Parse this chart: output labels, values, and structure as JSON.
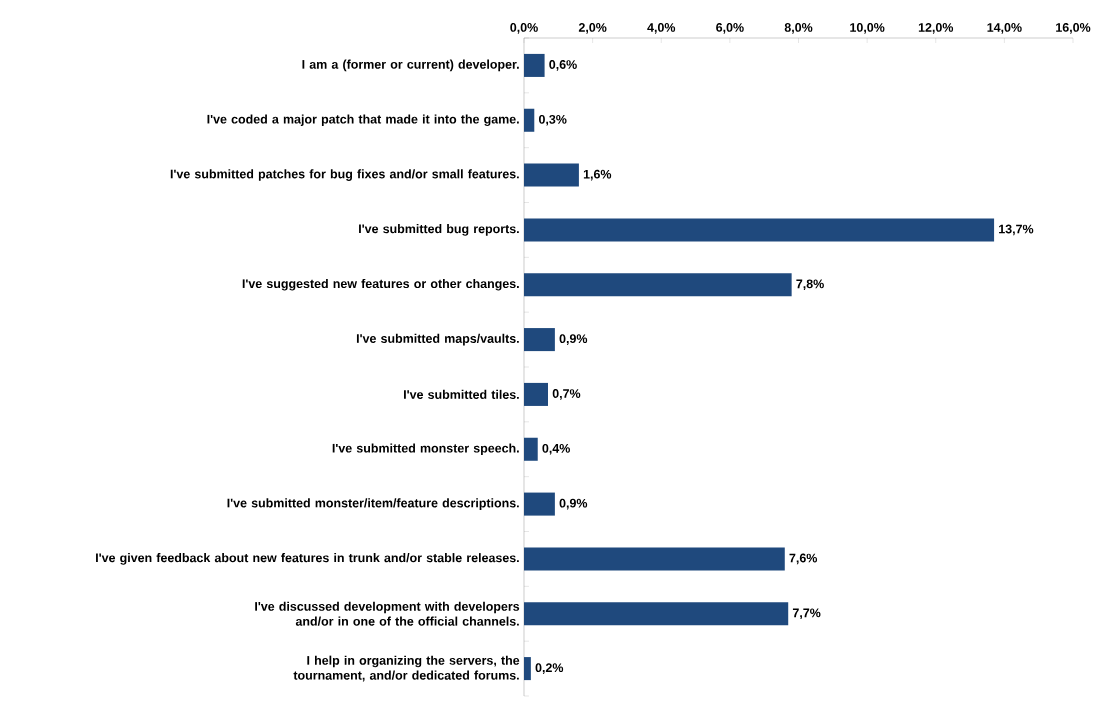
{
  "chart_data": {
    "type": "bar",
    "orientation": "horizontal",
    "color": "#1f497d",
    "categories": [
      "I am a (former or current) developer.",
      "I've coded a major patch that made it into the game.",
      "I've submitted patches for bug fixes and/or small features.",
      "I've submitted bug reports.",
      "I've suggested new features or other changes.",
      "I've submitted maps/vaults.",
      "I've submitted tiles.",
      "I've submitted monster speech.",
      "I've submitted monster/item/feature descriptions.",
      "I've given feedback about new features in trunk and/or stable releases.",
      "I've discussed development with developers and/or in one of the official channels.",
      "I help in organizing the servers, the tournament, and/or dedicated forums."
    ],
    "values": [
      0.6,
      0.3,
      1.6,
      13.7,
      7.8,
      0.9,
      0.7,
      0.4,
      0.9,
      7.6,
      7.7,
      0.2
    ],
    "value_labels": [
      "0,6%",
      "0,3%",
      "1,6%",
      "13,7%",
      "7,8%",
      "0,9%",
      "0,7%",
      "0,4%",
      "0,9%",
      "7,6%",
      "7,7%",
      "0,2%"
    ],
    "xlim": [
      0,
      16
    ],
    "xticks": [
      {
        "value": 0,
        "label": "0,0%"
      },
      {
        "value": 2,
        "label": "2,0%"
      },
      {
        "value": 4,
        "label": "4,0%"
      },
      {
        "value": 6,
        "label": "6,0%"
      },
      {
        "value": 8,
        "label": "8,0%"
      },
      {
        "value": 10,
        "label": "10,0%"
      },
      {
        "value": 12,
        "label": "12,0%"
      },
      {
        "value": 14,
        "label": "14,0%"
      },
      {
        "value": 16,
        "label": "16,0%"
      }
    ]
  }
}
